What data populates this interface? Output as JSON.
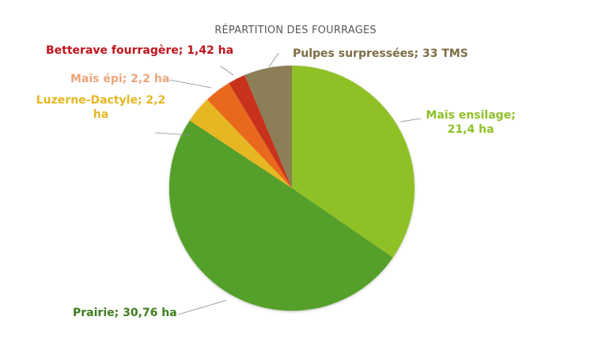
{
  "chart_data": {
    "type": "pie",
    "title": "RÉPARTITION DES FOURRAGES",
    "categories": [
      "Maïs ensilage",
      "Prairie",
      "Luzerne-Dactyle",
      "Maïs épi",
      "Betterave fourragère",
      "Pulpes surpressées"
    ],
    "values": [
      21.4,
      30.76,
      2.2,
      2.2,
      1.42,
      33
    ],
    "units": [
      "ha",
      "ha",
      "ha",
      "ha",
      "ha",
      "TMS"
    ],
    "labels": [
      "Maïs ensilage; 21,4 ha",
      "Prairie; 30,76 ha",
      "Luzerne-Dactyle; 2,2 ha",
      "Maïs épi; 2,2 ha",
      "Betterave fourragère; 1,42 ha",
      "Pulpes surpressées; 33 TMS"
    ],
    "colors": [
      "#8fc127",
      "#55a02a",
      "#e6b722",
      "#e8691d",
      "#c8321e",
      "#8c7e56"
    ],
    "approx_angle_share_pct": [
      34.6,
      49.7,
      3.55,
      3.55,
      2.3,
      6.3
    ],
    "legend": "none (data labels with leader lines)"
  },
  "title": "RÉPARTITION DES FOURRAGES",
  "labels": {
    "mais_ensilage_l1": "Maïs ensilage;",
    "mais_ensilage_l2": "21,4 ha",
    "prairie": "Prairie; 30,76 ha",
    "luzerne_l1": "Luzerne-Dactyle; 2,2",
    "luzerne_l2": "ha",
    "mais_epi": "Maïs épi; 2,2 ha",
    "betterave": "Betterave fourragère; 1,42 ha",
    "pulpes": "Pulpes surpressées; 33 TMS"
  },
  "label_colors": {
    "mais_ensilage": "#8fc127",
    "prairie": "#3e7d1f",
    "luzerne": "#e6b722",
    "mais_epi": "#eaa57a",
    "betterave": "#c0141c",
    "pulpes": "#7d6d45"
  }
}
